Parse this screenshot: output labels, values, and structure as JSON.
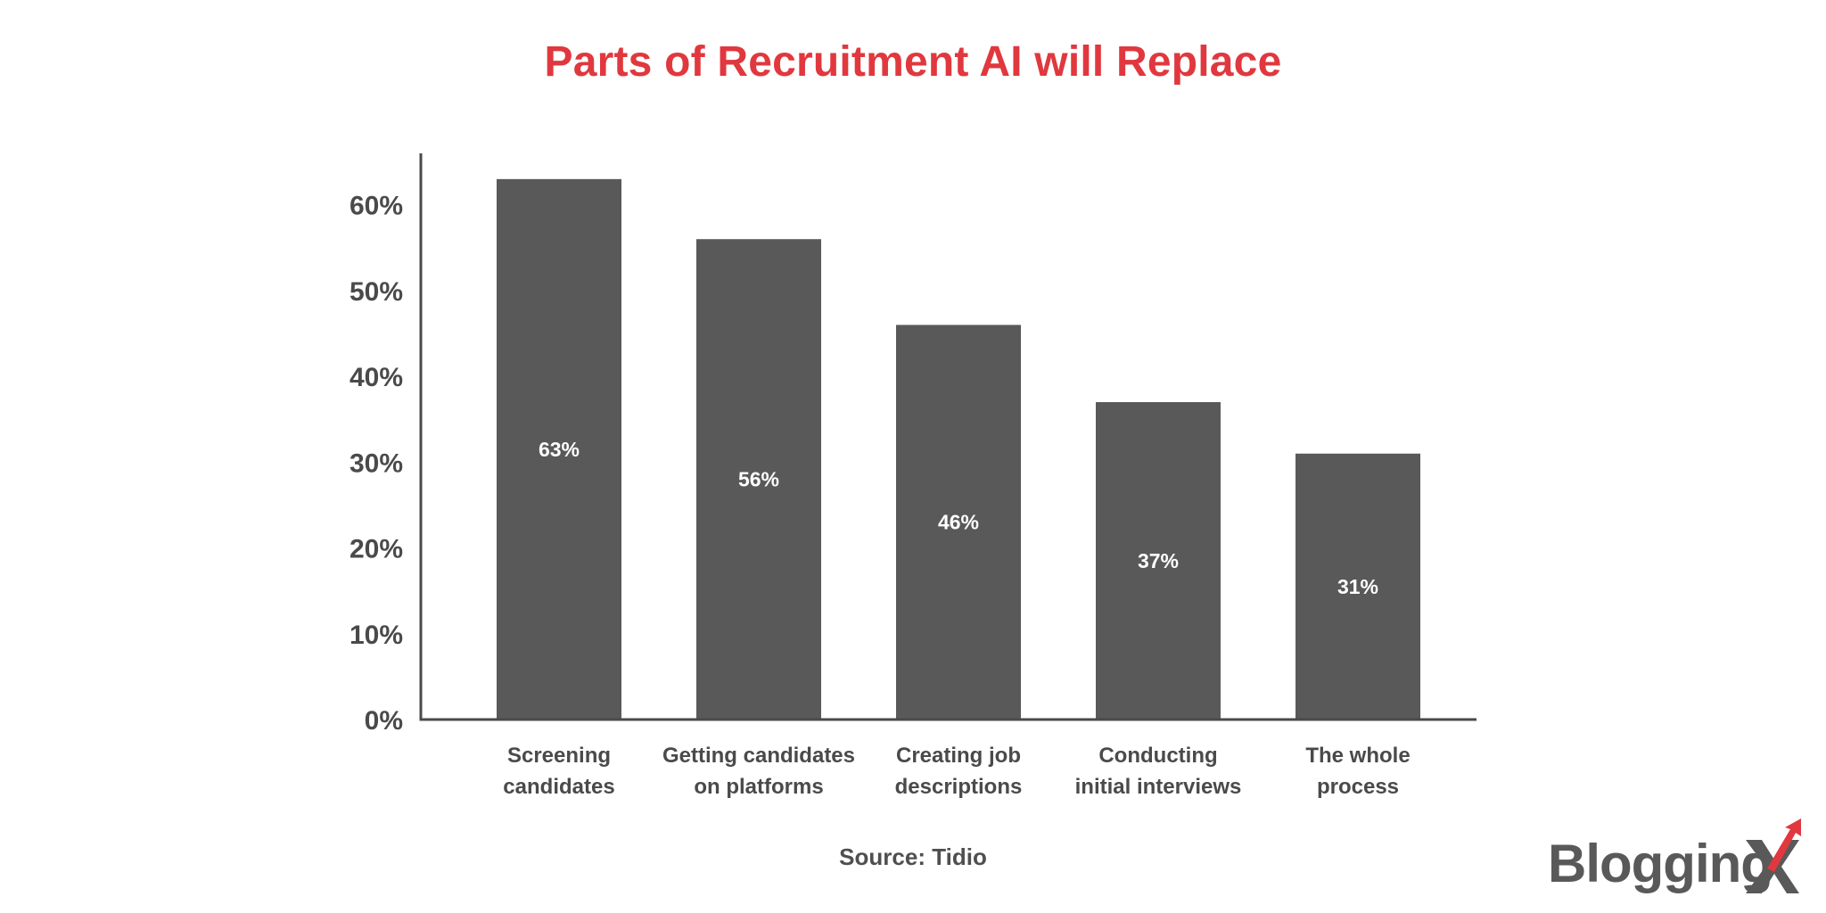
{
  "chart_data": {
    "type": "bar",
    "title": "Parts of Recruitment AI will Replace",
    "categories": [
      [
        "Screening",
        "candidates"
      ],
      [
        "Getting candidates",
        "on platforms"
      ],
      [
        "Creating job",
        "descriptions"
      ],
      [
        "Conducting",
        "initial interviews"
      ],
      [
        "The whole",
        "process"
      ]
    ],
    "values": [
      63,
      56,
      46,
      37,
      31
    ],
    "data_labels": [
      "63%",
      "56%",
      "46%",
      "37%",
      "31%"
    ],
    "y_ticks": [
      "0%",
      "10%",
      "20%",
      "30%",
      "40%",
      "50%",
      "60%"
    ],
    "ylim": [
      0,
      66
    ],
    "xlabel": "",
    "ylabel": "",
    "grid": false,
    "bar_color": "#595959",
    "title_color": "#e0383e"
  },
  "source": "Source: Tidio",
  "logo": {
    "text": "Blogging",
    "accent_color": "#e0383e",
    "text_color": "#595959"
  }
}
